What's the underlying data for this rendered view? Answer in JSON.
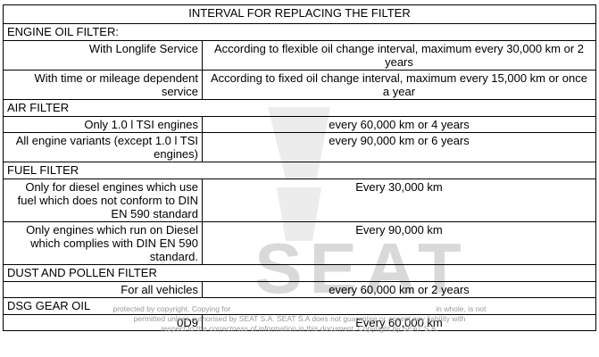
{
  "table": {
    "title": "INTERVAL FOR REPLACING THE FILTER",
    "sections": [
      {
        "heading": "ENGINE OIL FILTER:",
        "rows": [
          [
            "With Longlife Service",
            "According to flexible oil change interval, maximum every 30,000 km or 2 years"
          ],
          [
            "With time or mileage dependent service",
            "According to fixed oil change interval, maximum every 15,000 km or once a year"
          ]
        ]
      },
      {
        "heading": "AIR FILTER",
        "rows": [
          [
            "Only 1.0 l TSI engines",
            "every 60,000 km or 4 years"
          ],
          [
            "All engine variants (except 1.0 l TSI engines)",
            "every 90,000 km or 6 years"
          ]
        ]
      },
      {
        "heading": "FUEL FILTER",
        "rows": [
          [
            "Only for diesel engines which use fuel which does not conform to DIN EN 590 standard",
            "Every 30,000 km"
          ],
          [
            "Only engines which run on Diesel which complies with DIN EN 590 standard.",
            "Every 90,000 km"
          ]
        ]
      },
      {
        "heading": "DUST AND POLLEN FILTER",
        "rows": [
          [
            "For all vehicles",
            "every 60,000 km or 2 years"
          ]
        ]
      },
      {
        "heading": "DSG GEAR OIL",
        "rows": [
          [
            "0D9",
            "Every 60,000 km"
          ]
        ]
      }
    ]
  },
  "watermark": {
    "logo": "SEAT",
    "lines": [
      "protected by copyright. Copying for",
      "in whole, is not",
      "permitted unless authorised by SEAT S.A. SEAT S.A does not guarantee or accept any liability with",
      "respect to the correctness of information in this document. Copyright by SEAT S.A."
    ]
  }
}
